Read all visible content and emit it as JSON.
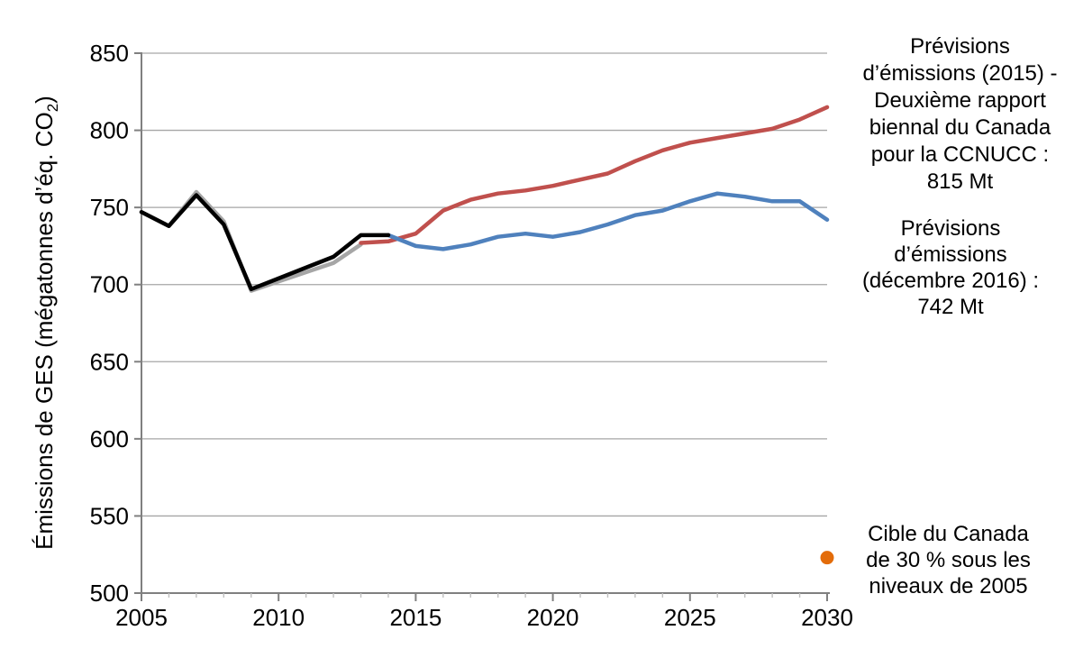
{
  "chart_data": {
    "type": "line",
    "title": "",
    "xlabel": "",
    "xlim": [
      2005,
      2030
    ],
    "ylim": [
      500,
      850
    ],
    "x_ticks": [
      2005,
      2010,
      2015,
      2020,
      2025,
      2030
    ],
    "x_minor_tick_step": 1,
    "y_ticks": [
      500,
      550,
      600,
      650,
      700,
      750,
      800,
      850
    ],
    "grid": "horizontal",
    "legend": "none",
    "colors": {
      "axis": "#808080",
      "gridline": "#A6A6A6",
      "minor_tick": "#BFBFBF",
      "historical": "#000000",
      "historical_previous": "#A6A6A6",
      "projection_2015": "#C0504D",
      "projection_2016": "#4F81BD",
      "target": "#E36C0A"
    },
    "series": [
      {
        "id": "historique-inventaire-precedent",
        "color": "#A6A6A6",
        "stroke_width": 4.5,
        "years": [
          2005,
          2006,
          2007,
          2008,
          2009,
          2010,
          2011,
          2012,
          2013
        ],
        "values": [
          747,
          738,
          760,
          741,
          696,
          702,
          708,
          714,
          726
        ]
      },
      {
        "id": "previsions-emissions-2015-br2",
        "color": "#C0504D",
        "stroke_width": 4.5,
        "years": [
          2013,
          2014,
          2015,
          2016,
          2017,
          2018,
          2019,
          2020,
          2021,
          2022,
          2023,
          2024,
          2025,
          2026,
          2027,
          2028,
          2029,
          2030
        ],
        "values": [
          727,
          728,
          733,
          748,
          755,
          759,
          761,
          764,
          768,
          772,
          780,
          787,
          792,
          795,
          798,
          801,
          807,
          815
        ]
      },
      {
        "id": "previsions-emissions-decembre-2016",
        "color": "#4F81BD",
        "stroke_width": 4.5,
        "years": [
          2014,
          2015,
          2016,
          2017,
          2018,
          2019,
          2020,
          2021,
          2022,
          2023,
          2024,
          2025,
          2026,
          2027,
          2028,
          2029,
          2030
        ],
        "values": [
          732,
          725,
          723,
          726,
          731,
          733,
          731,
          734,
          739,
          745,
          748,
          754,
          759,
          757,
          754,
          754,
          742
        ]
      },
      {
        "id": "emissions-historiques",
        "color": "#000000",
        "stroke_width": 4.5,
        "years": [
          2005,
          2006,
          2007,
          2008,
          2009,
          2010,
          2011,
          2012,
          2013,
          2014
        ],
        "values": [
          747,
          738,
          758,
          739,
          697,
          704,
          711,
          718,
          732,
          732
        ]
      }
    ],
    "target_point": {
      "x": 2030,
      "y": 523,
      "color": "#E36C0A",
      "radius": 7.5
    }
  },
  "axis": {
    "y_title_pre": "Émissions de GES (mégatonnes d’éq. CO",
    "y_title_sub": "2",
    "y_title_post": ")"
  },
  "annotations": {
    "br2": {
      "lines": [
        "Prévisions",
        "d’émissions (2015) -",
        "Deuxième rapport",
        "biennal du Canada",
        "pour la CCNUCC :",
        "815 Mt"
      ]
    },
    "dec2016": {
      "lines": [
        "Prévisions",
        "d’émissions",
        "(décembre 2016) :",
        "742 Mt"
      ]
    },
    "target": {
      "lines": [
        "Cible du Canada",
        "de 30 % sous les",
        "niveaux de 2005"
      ]
    }
  }
}
